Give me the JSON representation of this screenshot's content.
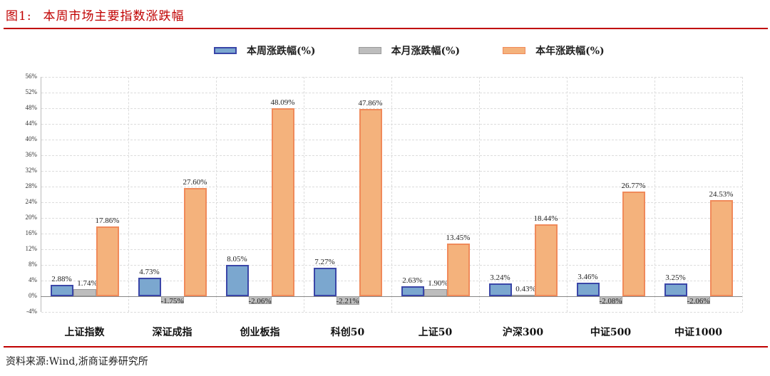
{
  "figure": {
    "number": "图1:",
    "title": "本周市场主要指数涨跌幅",
    "source": "资料来源:Wind,浙商证券研究所"
  },
  "colors": {
    "title_red": "#c00000",
    "weekly_fill": "#7ba7cf",
    "weekly_border": "#3a46a8",
    "monthly_fill": "#bdbdbd",
    "yearly_fill": "#f4b27c",
    "yearly_border": "#f08a5a"
  },
  "chart_data": {
    "type": "bar",
    "title": "本周市场主要指数涨跌幅",
    "xlabel": "",
    "ylabel": "",
    "ylim": [
      -4,
      56
    ],
    "yticks": [
      "56%",
      "52%",
      "48%",
      "44%",
      "40%",
      "36%",
      "32%",
      "28%",
      "24%",
      "20%",
      "16%",
      "12%",
      "8%",
      "4%",
      "0%",
      "-4%"
    ],
    "grid": true,
    "legend_position": "top",
    "categories": [
      "上证指数",
      "深证成指",
      "创业板指",
      "科创50",
      "上证50",
      "沪深300",
      "中证500",
      "中证1000"
    ],
    "series": [
      {
        "name": "本周涨跌幅(%)",
        "values": [
          2.88,
          4.73,
          8.05,
          7.27,
          2.63,
          3.24,
          3.46,
          3.25
        ],
        "labels": [
          "2.88%",
          "4.73%",
          "8.05%",
          "7.27%",
          "2.63%",
          "3.24%",
          "3.46%",
          "3.25%"
        ]
      },
      {
        "name": "本月涨跌幅(%)",
        "values": [
          1.74,
          -1.75,
          -2.06,
          -2.21,
          1.9,
          0.43,
          -2.08,
          -2.06
        ],
        "labels": [
          "1.74%",
          "-1.75%",
          "-2.06%",
          "-2.21%",
          "1.90%",
          "0.43%",
          "-2.08%",
          "-2.06%"
        ]
      },
      {
        "name": "本年涨跌幅(%)",
        "values": [
          17.86,
          27.6,
          48.09,
          47.86,
          13.45,
          18.44,
          26.77,
          24.53
        ],
        "labels": [
          "17.86%",
          "27.60%",
          "48.09%",
          "47.86%",
          "13.45%",
          "18.44%",
          "26.77%",
          "24.53%"
        ]
      }
    ]
  }
}
